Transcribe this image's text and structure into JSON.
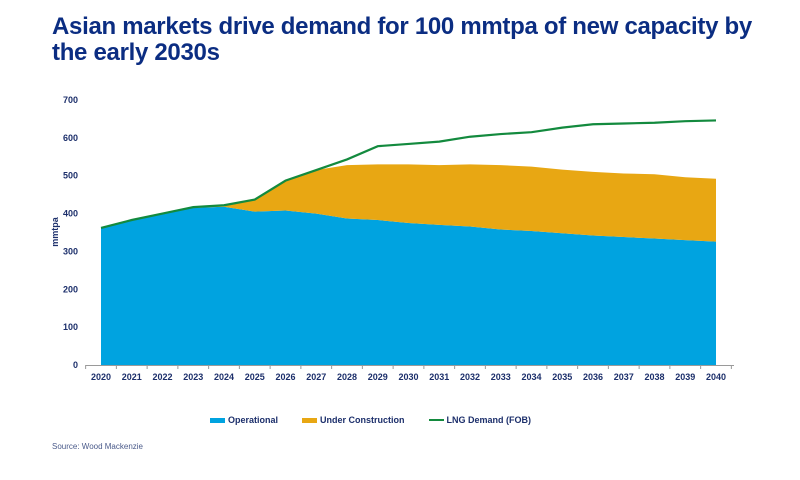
{
  "title": "Asian markets drive demand for 100 mmtpa of new capacity by the early 2030s",
  "source": "Source: Wood Mackenzie",
  "chart_data": {
    "type": "area",
    "title": "Asian markets drive demand for 100 mmtpa of new capacity by the early 2030s",
    "xlabel": "",
    "ylabel": "mmtpa",
    "ylim": [
      0,
      700
    ],
    "yticks": [
      0,
      100,
      200,
      300,
      400,
      500,
      600,
      700
    ],
    "stacked": true,
    "grid": false,
    "legend_placement": "bottom",
    "categories": [
      "2020",
      "2021",
      "2022",
      "2023",
      "2024",
      "2025",
      "2026",
      "2027",
      "2028",
      "2029",
      "2030",
      "2031",
      "2032",
      "2033",
      "2034",
      "2035",
      "2036",
      "2037",
      "2038",
      "2039",
      "2040"
    ],
    "series": [
      {
        "name": "Operational",
        "kind": "area",
        "color": "#00a3e0",
        "values": [
          362,
          383,
          400,
          415,
          418,
          405,
          408,
          400,
          387,
          383,
          375,
          370,
          366,
          358,
          354,
          348,
          342,
          338,
          334,
          330,
          326
        ]
      },
      {
        "name": "Under Construction",
        "kind": "area",
        "color": "#e8a713",
        "values": [
          0,
          0,
          0,
          0,
          2,
          32,
          77,
          115,
          141,
          147,
          155,
          158,
          164,
          170,
          170,
          168,
          168,
          168,
          170,
          166,
          166
        ]
      },
      {
        "name": "LNG Demand (FOB)",
        "kind": "line",
        "color": "#138a3e",
        "values": [
          362,
          383,
          400,
          417,
          422,
          437,
          487,
          515,
          543,
          578,
          584,
          590,
          603,
          610,
          615,
          627,
          636,
          638,
          640,
          644,
          646
        ]
      }
    ]
  }
}
